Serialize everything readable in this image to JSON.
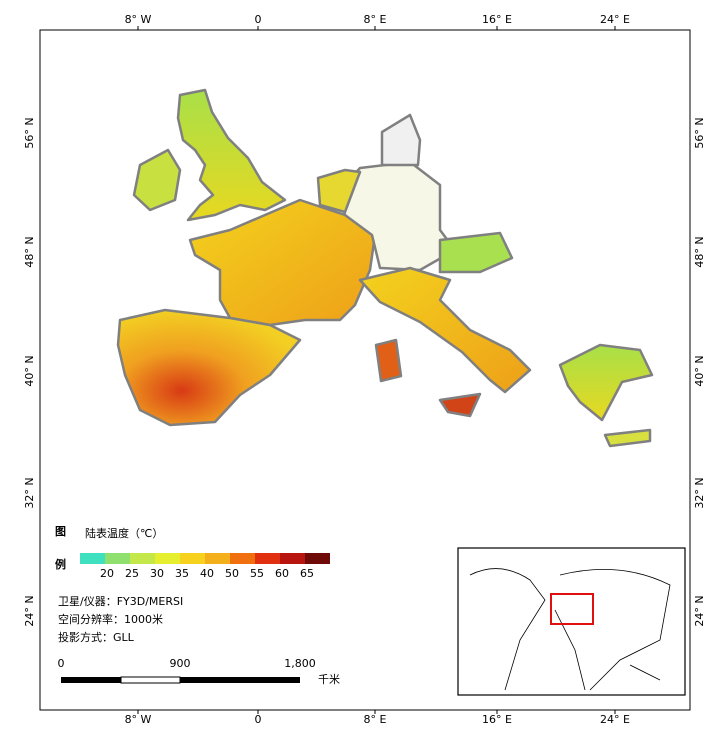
{
  "graticule": {
    "top": [
      "8° W",
      "0",
      "8° E",
      "16° E",
      "24° E"
    ],
    "bottom": [
      "8° W",
      "0",
      "8° E",
      "16° E",
      "24° E"
    ],
    "left": [
      "56° N",
      "48° N",
      "40° N",
      "32° N",
      "24° N"
    ],
    "right": [
      "56° N",
      "48° N",
      "40° N",
      "32° N",
      "24° N"
    ]
  },
  "legend": {
    "label_1": "图",
    "label_2": "例",
    "title": "陆表温度（℃）",
    "colors": [
      "#3fe0c0",
      "#90e070",
      "#c4e84a",
      "#e6ee30",
      "#f6d21e",
      "#f4b01c",
      "#f07010",
      "#e03010",
      "#b81410",
      "#6e0a08"
    ],
    "labels": [
      "20",
      "25",
      "30",
      "35",
      "40",
      "50",
      "55",
      "60",
      "65"
    ]
  },
  "info": [
    "卫星/仪器：FY3D/MERSI",
    "空间分辨率：1000米",
    "投影方式：GLL"
  ],
  "scale_bar": {
    "labels": [
      "0",
      "900",
      "1,800"
    ],
    "unit": "千米"
  }
}
